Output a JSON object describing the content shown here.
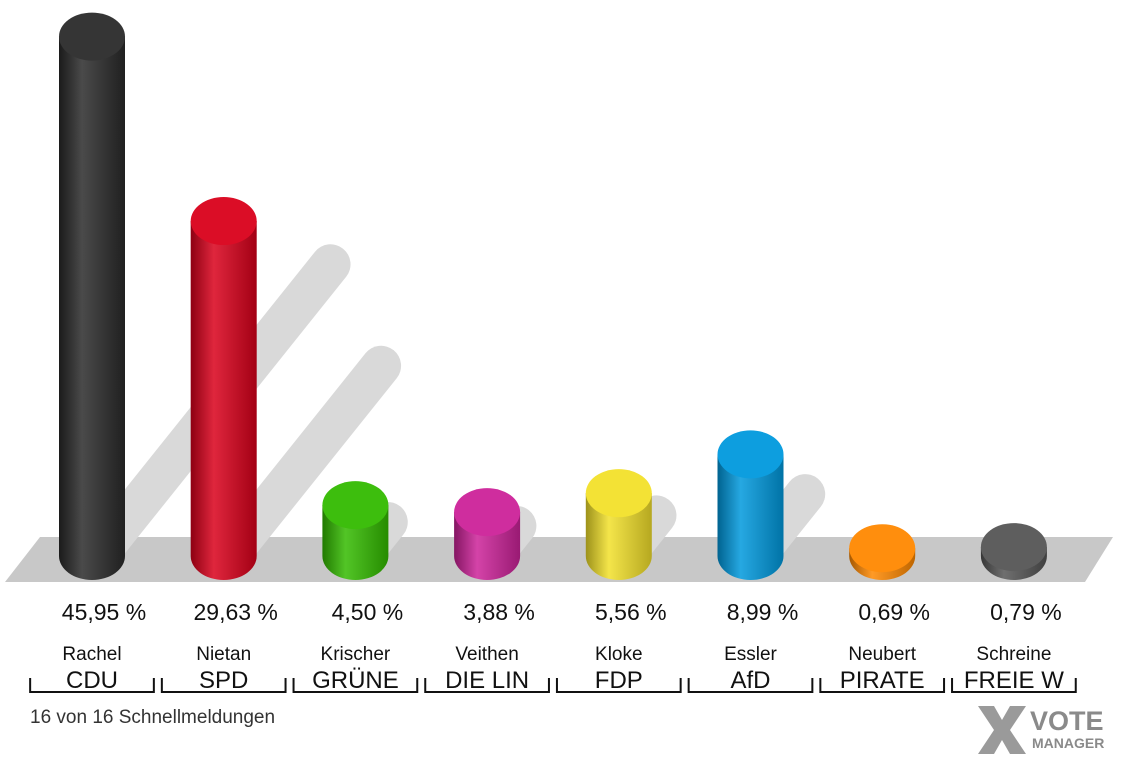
{
  "chart_data": {
    "type": "bar",
    "categories": [
      "CDU",
      "SPD",
      "GRÜNE",
      "DIE LIN",
      "FDP",
      "AfD",
      "PIRATE",
      "FREIE W"
    ],
    "candidates": [
      "Rachel",
      "Nietan",
      "Krischer",
      "Veithen",
      "Kloke",
      "Essler",
      "Neubert",
      "Schreine"
    ],
    "values": [
      45.95,
      29.63,
      4.5,
      3.88,
      5.56,
      8.99,
      0.69,
      0.79
    ],
    "value_labels": [
      "45,95 %",
      "29,63 %",
      "4,50 %",
      "3,88 %",
      "5,56 %",
      "8,99 %",
      "0,69 %",
      "0,79 %"
    ],
    "colors": [
      "#2a2a2a",
      "#d9001b",
      "#33bb00",
      "#cc2299",
      "#f2e02a",
      "#0099dd",
      "#ff8800",
      "#555555"
    ],
    "style": "3d-cylinder",
    "ylim": [
      0,
      46
    ]
  },
  "footer": {
    "status": "16 von 16 Schnellmeldungen"
  },
  "logo": {
    "line1": "VOTE",
    "line2": "MANAGER"
  }
}
